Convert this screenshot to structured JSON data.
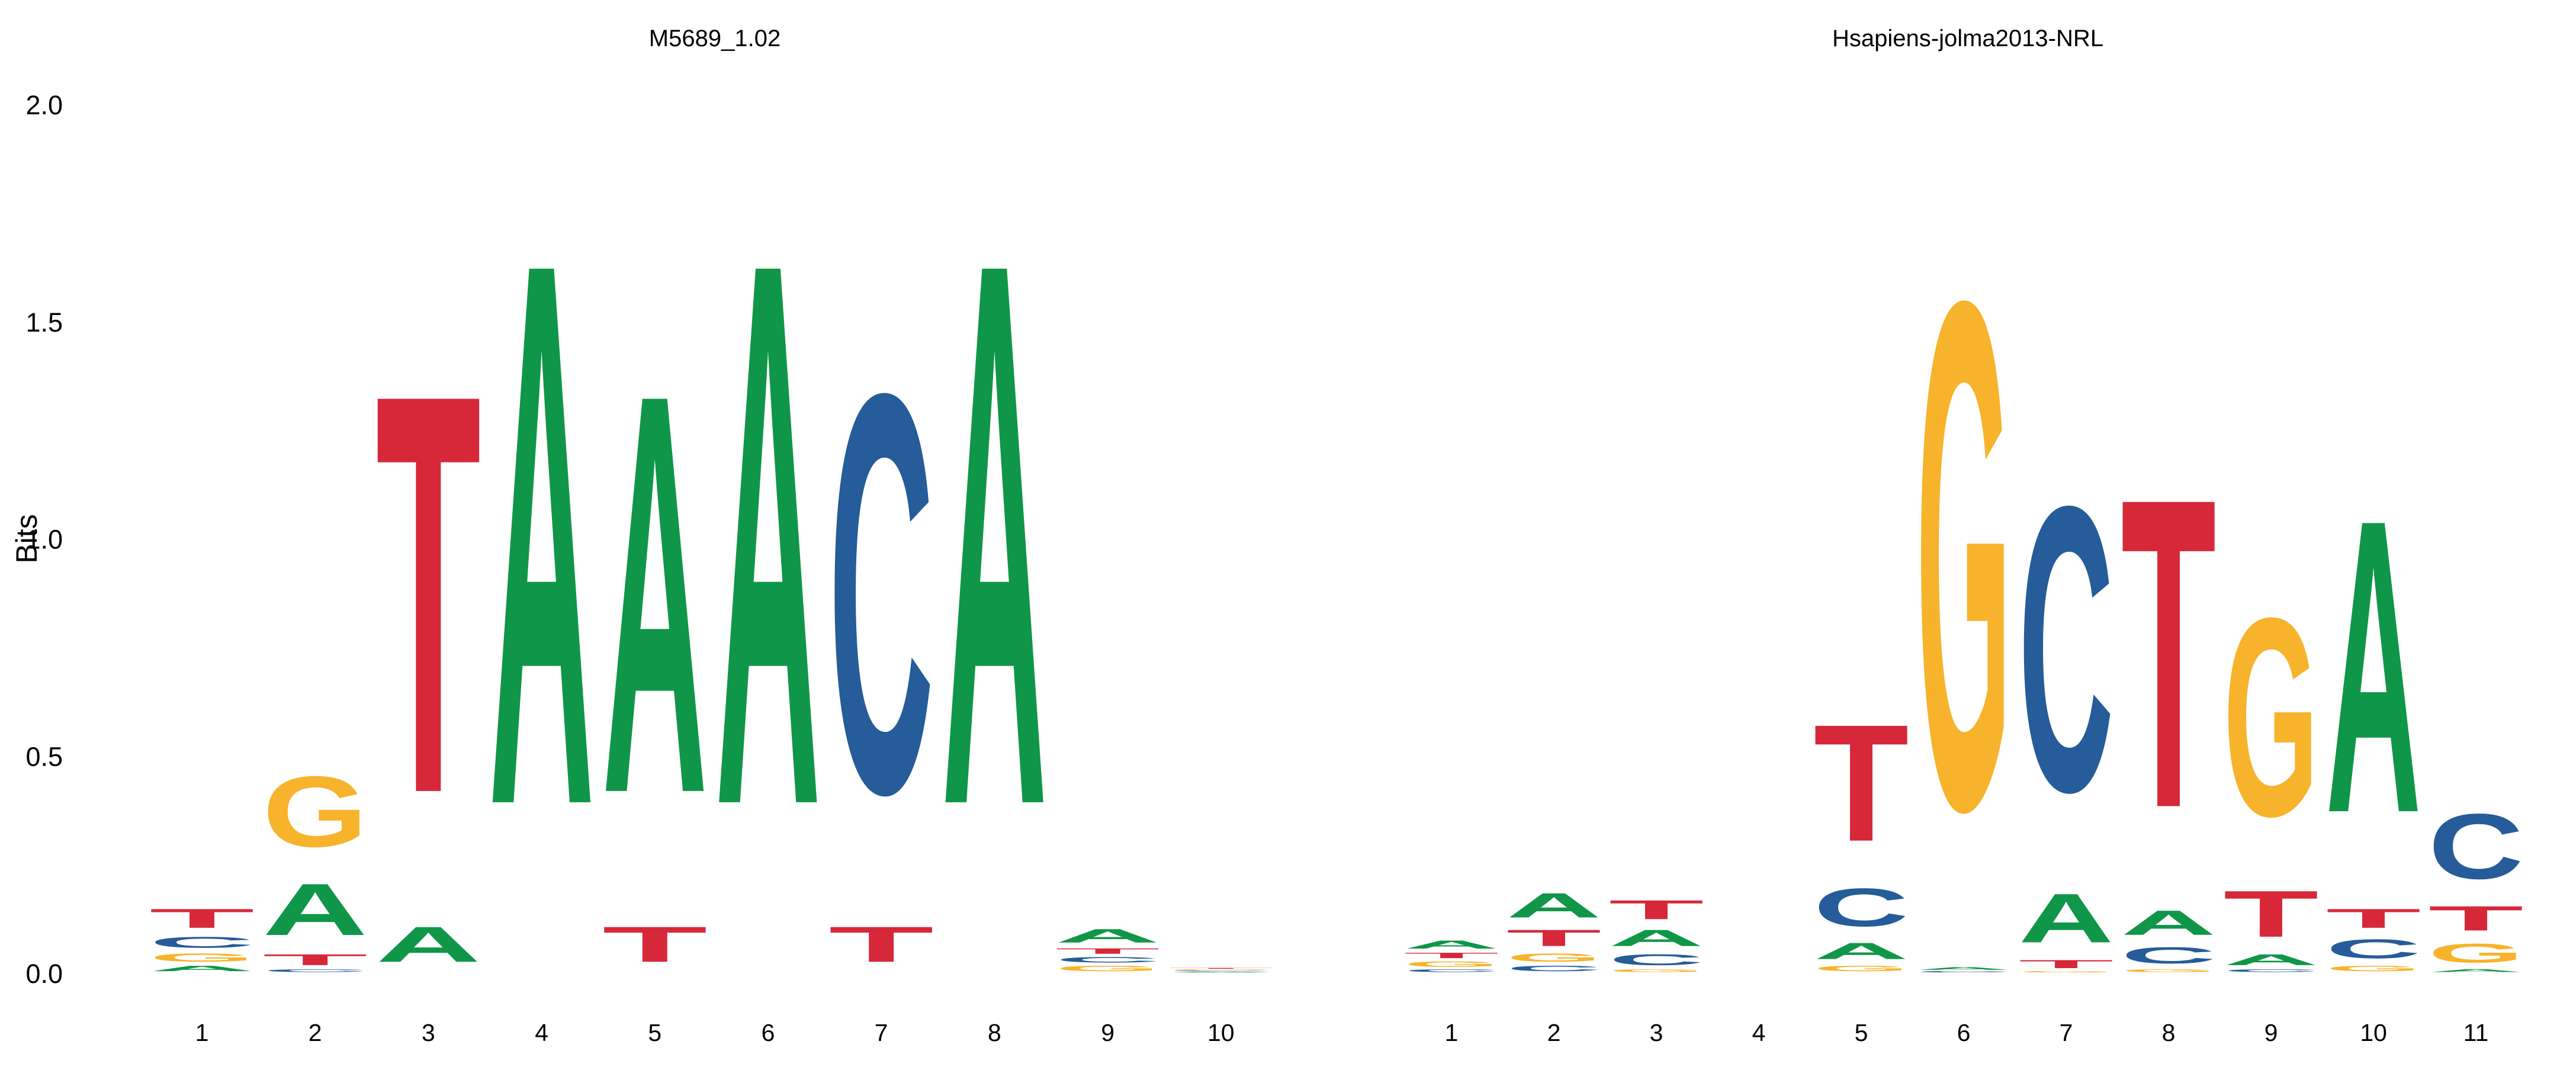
{
  "y_axis": {
    "label": "Bits",
    "ticks": [
      "0.0",
      "0.5",
      "1.0",
      "1.5",
      "2.0"
    ]
  },
  "colors": {
    "A": "#109648",
    "C": "#255c99",
    "G": "#f7b32b",
    "T": "#d62839"
  },
  "chart_data": [
    {
      "type": "sequence-logo",
      "title": "M5689_1.02",
      "ylabel": "Bits",
      "ylim": [
        0,
        2
      ],
      "positions": [
        {
          "pos": "1",
          "letters": [
            [
              "A",
              0.02
            ],
            [
              "G",
              0.03
            ],
            [
              "C",
              0.04
            ],
            [
              "T",
              0.07
            ]
          ]
        },
        {
          "pos": "2",
          "letters": [
            [
              "C",
              0.01
            ],
            [
              "T",
              0.04
            ],
            [
              "A",
              0.19
            ],
            [
              "G",
              0.26
            ]
          ]
        },
        {
          "pos": "3",
          "letters": [
            [
              "A",
              0.13
            ],
            [
              "T",
              1.47
            ]
          ]
        },
        {
          "pos": "4",
          "letters": [
            [
              "A",
              2.0
            ]
          ]
        },
        {
          "pos": "5",
          "letters": [
            [
              "T",
              0.13
            ],
            [
              "A",
              1.47
            ]
          ]
        },
        {
          "pos": "6",
          "letters": [
            [
              "A",
              2.0
            ]
          ]
        },
        {
          "pos": "7",
          "letters": [
            [
              "T",
              0.13
            ],
            [
              "C",
              1.47
            ]
          ]
        },
        {
          "pos": "8",
          "letters": [
            [
              "A",
              2.0
            ]
          ]
        },
        {
          "pos": "9",
          "letters": [
            [
              "G",
              0.02
            ],
            [
              "C",
              0.02
            ],
            [
              "T",
              0.02
            ],
            [
              "A",
              0.05
            ]
          ]
        },
        {
          "pos": "10",
          "letters": [
            [
              "A",
              0.003
            ],
            [
              "C",
              0.003
            ],
            [
              "G",
              0.003
            ],
            [
              "T",
              0.003
            ]
          ]
        }
      ]
    },
    {
      "type": "sequence-logo",
      "title": "Hsapiens-jolma2013-NRL",
      "ylabel": "",
      "ylim": [
        0,
        2
      ],
      "positions": [
        {
          "pos": "1",
          "letters": [
            [
              "C",
              0.01
            ],
            [
              "G",
              0.02
            ],
            [
              "T",
              0.02
            ],
            [
              "A",
              0.03
            ]
          ]
        },
        {
          "pos": "2",
          "letters": [
            [
              "C",
              0.02
            ],
            [
              "G",
              0.03
            ],
            [
              "T",
              0.06
            ],
            [
              "A",
              0.09
            ]
          ]
        },
        {
          "pos": "3",
          "letters": [
            [
              "G",
              0.01
            ],
            [
              "C",
              0.04
            ],
            [
              "A",
              0.06
            ],
            [
              "T",
              0.07
            ]
          ]
        },
        {
          "pos": "4",
          "letters": []
        },
        {
          "pos": "5",
          "letters": [
            [
              "G",
              0.02
            ],
            [
              "A",
              0.06
            ],
            [
              "C",
              0.14
            ],
            [
              "T",
              0.43
            ]
          ]
        },
        {
          "pos": "6",
          "letters": [
            [
              "C",
              0.005
            ],
            [
              "A",
              0.01
            ],
            [
              "G",
              1.87
            ]
          ]
        },
        {
          "pos": "7",
          "letters": [
            [
              "G",
              0.005
            ],
            [
              "T",
              0.03
            ],
            [
              "A",
              0.18
            ],
            [
              "C",
              1.05
            ]
          ]
        },
        {
          "pos": "8",
          "letters": [
            [
              "G",
              0.01
            ],
            [
              "C",
              0.06
            ],
            [
              "A",
              0.09
            ],
            [
              "T",
              1.14
            ]
          ]
        },
        {
          "pos": "9",
          "letters": [
            [
              "C",
              0.01
            ],
            [
              "A",
              0.04
            ],
            [
              "T",
              0.17
            ],
            [
              "G",
              0.73
            ]
          ]
        },
        {
          "pos": "10",
          "letters": [
            [
              "G",
              0.02
            ],
            [
              "C",
              0.07
            ],
            [
              "T",
              0.07
            ],
            [
              "A",
              1.08
            ]
          ]
        },
        {
          "pos": "11",
          "letters": [
            [
              "A",
              0.01
            ],
            [
              "G",
              0.07
            ],
            [
              "T",
              0.09
            ],
            [
              "C",
              0.24
            ]
          ]
        }
      ]
    }
  ]
}
